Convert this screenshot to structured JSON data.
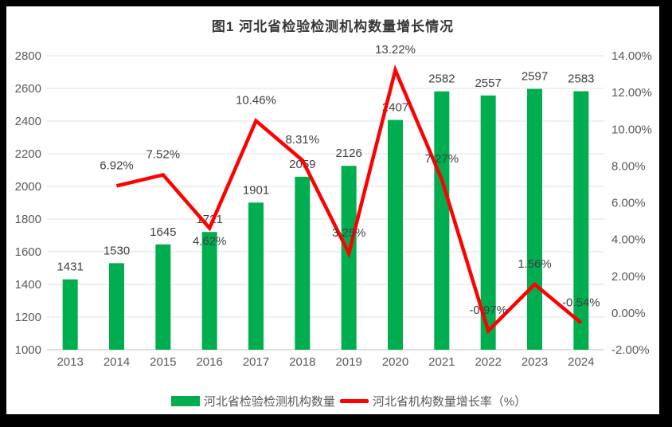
{
  "chart_data": {
    "type": "combo-bar-line",
    "title": "图1  河北省检验检测机构数量增长情况",
    "categories": [
      "2013",
      "2014",
      "2015",
      "2016",
      "2017",
      "2018",
      "2019",
      "2020",
      "2021",
      "2022",
      "2023",
      "2024"
    ],
    "series": [
      {
        "name": "河北省检验检测机构数量",
        "type": "bar",
        "axis": "left",
        "color": "#00AE50",
        "values": [
          1431,
          1530,
          1645,
          1721,
          1901,
          2059,
          2126,
          2407,
          2582,
          2557,
          2597,
          2583
        ],
        "data_labels": [
          "1431",
          "1530",
          "1645",
          "1721",
          "1901",
          "2059",
          "2126",
          "2407",
          "2582",
          "2557",
          "2597",
          "2583"
        ]
      },
      {
        "name": "河北省机构数量增长率（%）",
        "type": "line",
        "axis": "right",
        "color": "#FF0000",
        "values": [
          null,
          6.92,
          7.52,
          4.62,
          10.46,
          8.31,
          3.25,
          13.22,
          7.27,
          -0.97,
          1.56,
          -0.54
        ],
        "data_labels": [
          "",
          "6.92%",
          "7.52%",
          "4.62%",
          "10.46%",
          "8.31%",
          "3.25%",
          "13.22%",
          "7.27%",
          "-0.97%",
          "1.56%",
          "-0.54%"
        ],
        "label_positions": [
          "",
          "above",
          "above",
          "below",
          "above",
          "above",
          "above",
          "above",
          "above",
          "above",
          "above",
          "above"
        ]
      }
    ],
    "left_axis": {
      "min": 1000,
      "max": 2800,
      "step": 200,
      "ticks": [
        "1000",
        "1200",
        "1400",
        "1600",
        "1800",
        "2000",
        "2200",
        "2400",
        "2600",
        "2800"
      ]
    },
    "right_axis": {
      "min": -2,
      "max": 14,
      "step": 2,
      "ticks": [
        "-2.00%",
        "0.00%",
        "2.00%",
        "4.00%",
        "6.00%",
        "8.00%",
        "10.00%",
        "12.00%",
        "14.00%"
      ]
    },
    "grid": true,
    "legend_position": "bottom"
  }
}
